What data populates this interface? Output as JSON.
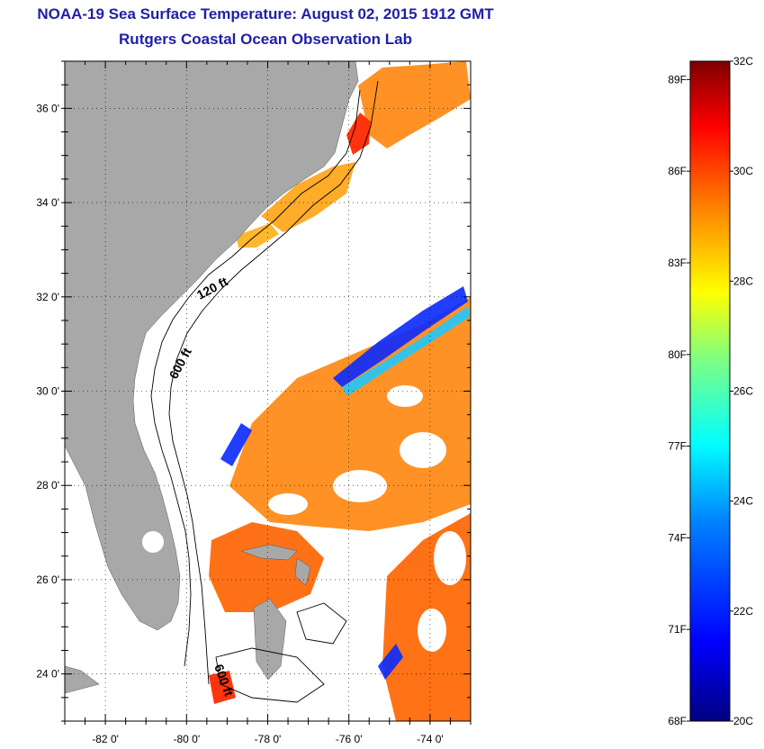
{
  "title": "NOAA-19 Sea Surface Temperature:  August 02, 2015 1912 GMT",
  "subtitle": "Rutgers Coastal Ocean Observation Lab",
  "map": {
    "lon_range": [
      -83,
      -73
    ],
    "lat_range": [
      23,
      37
    ],
    "lat_ticks": [
      {
        "value": 36,
        "label": "36 0'"
      },
      {
        "value": 34,
        "label": "34 0'"
      },
      {
        "value": 32,
        "label": "32 0'"
      },
      {
        "value": 30,
        "label": "30 0'"
      },
      {
        "value": 28,
        "label": "28 0'"
      },
      {
        "value": 26,
        "label": "26 0'"
      },
      {
        "value": 24,
        "label": "24 0'"
      }
    ],
    "lon_ticks": [
      {
        "value": -82,
        "label": "-82 0'"
      },
      {
        "value": -80,
        "label": "-80 0'"
      },
      {
        "value": -78,
        "label": "-78 0'"
      },
      {
        "value": -76,
        "label": "-76 0'"
      },
      {
        "value": -74,
        "label": "-74 0'"
      }
    ],
    "contour_labels": [
      "120 ft",
      "600 ft",
      "600 ft"
    ],
    "colors": {
      "land": "#a8a8a8",
      "ocean_cloud": "#ffffff",
      "grid": "#000000"
    }
  },
  "colorbar": {
    "celsius_labels": [
      "32C",
      "30C",
      "28C",
      "26C",
      "24C",
      "22C",
      "20C"
    ],
    "fahrenheit_labels": [
      "89F",
      "86F",
      "83F",
      "80F",
      "77F",
      "74F",
      "71F",
      "68F"
    ],
    "celsius_range": [
      20,
      32
    ],
    "colors": [
      "#00007f",
      "#0000ff",
      "#0080ff",
      "#00ffff",
      "#80ff80",
      "#ffff00",
      "#ff8000",
      "#ff0000",
      "#7f0000"
    ]
  }
}
